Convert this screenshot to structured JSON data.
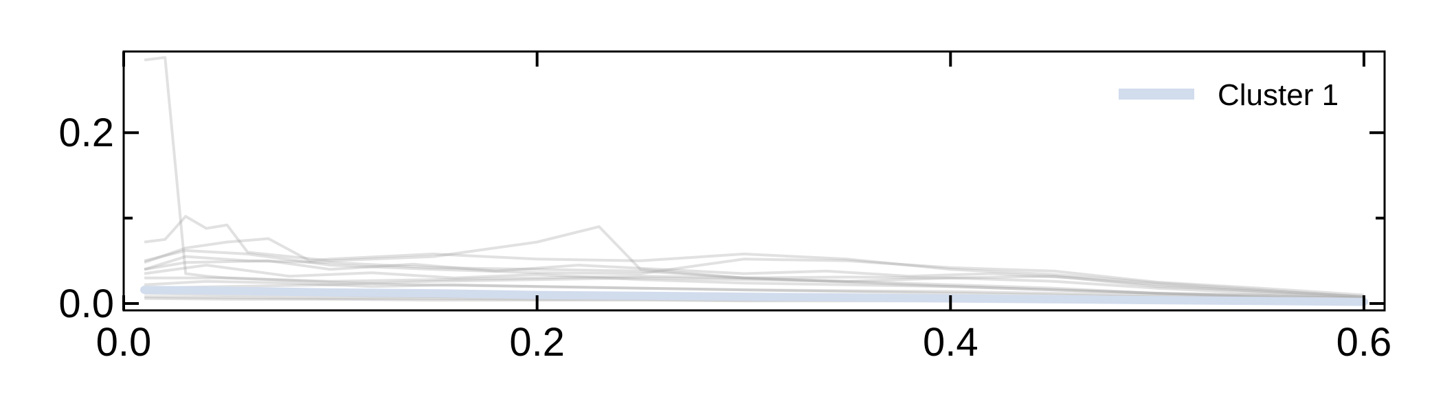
{
  "chart_data": {
    "type": "line",
    "title": "",
    "xlabel": "",
    "ylabel": "",
    "xlim": [
      0.0,
      0.61
    ],
    "ylim": [
      -0.008,
      0.295
    ],
    "x_ticks": [
      {
        "value": 0.0,
        "label": "0.0"
      },
      {
        "value": 0.2,
        "label": "0.2"
      },
      {
        "value": 0.4,
        "label": "0.4"
      },
      {
        "value": 0.6,
        "label": "0.6"
      }
    ],
    "y_ticks": [
      {
        "value": 0.0,
        "label": "0.0"
      },
      {
        "value": 0.2,
        "label": "0.2"
      }
    ],
    "y_minor_ticks": [
      0.1
    ],
    "grid": false,
    "legend": {
      "placement": "top-right"
    },
    "colors": {
      "background_series": "#9a9a9a",
      "cluster": "#d1dced",
      "axis": "#000000"
    },
    "background_series": [
      {
        "x": [
          0.01,
          0.02,
          0.03,
          0.04,
          0.05,
          0.07,
          0.1,
          0.14,
          0.2,
          0.3,
          0.4,
          0.5,
          0.6
        ],
        "y": [
          0.285,
          0.288,
          0.035,
          0.032,
          0.03,
          0.028,
          0.025,
          0.022,
          0.02,
          0.016,
          0.012,
          0.008,
          0.005
        ]
      },
      {
        "x": [
          0.01,
          0.02,
          0.03,
          0.04,
          0.05,
          0.06,
          0.08,
          0.1,
          0.15,
          0.2,
          0.23,
          0.25,
          0.3,
          0.4,
          0.5,
          0.6
        ],
        "y": [
          0.072,
          0.075,
          0.102,
          0.088,
          0.092,
          0.06,
          0.055,
          0.05,
          0.055,
          0.072,
          0.09,
          0.04,
          0.03,
          0.02,
          0.012,
          0.006
        ]
      },
      {
        "x": [
          0.01,
          0.03,
          0.05,
          0.07,
          0.09,
          0.1,
          0.15,
          0.2,
          0.25,
          0.3,
          0.35,
          0.4,
          0.45,
          0.5,
          0.55,
          0.6
        ],
        "y": [
          0.048,
          0.065,
          0.072,
          0.076,
          0.05,
          0.052,
          0.058,
          0.052,
          0.05,
          0.058,
          0.052,
          0.04,
          0.034,
          0.024,
          0.016,
          0.008
        ]
      },
      {
        "x": [
          0.01,
          0.03,
          0.06,
          0.1,
          0.15,
          0.2,
          0.25,
          0.3,
          0.35,
          0.4,
          0.45,
          0.5,
          0.55,
          0.6
        ],
        "y": [
          0.05,
          0.062,
          0.058,
          0.045,
          0.04,
          0.036,
          0.035,
          0.052,
          0.05,
          0.042,
          0.038,
          0.025,
          0.018,
          0.01
        ]
      },
      {
        "x": [
          0.01,
          0.03,
          0.06,
          0.1,
          0.15,
          0.2,
          0.25,
          0.3,
          0.35,
          0.4,
          0.45,
          0.5,
          0.55,
          0.6
        ],
        "y": [
          0.04,
          0.055,
          0.05,
          0.048,
          0.042,
          0.04,
          0.038,
          0.03,
          0.026,
          0.03,
          0.032,
          0.02,
          0.015,
          0.008
        ]
      },
      {
        "x": [
          0.01,
          0.05,
          0.1,
          0.15,
          0.2,
          0.25,
          0.3,
          0.35,
          0.4,
          0.45,
          0.5,
          0.55,
          0.6
        ],
        "y": [
          0.03,
          0.03,
          0.026,
          0.028,
          0.03,
          0.032,
          0.03,
          0.031,
          0.03,
          0.026,
          0.018,
          0.012,
          0.006
        ]
      },
      {
        "x": [
          0.01,
          0.04,
          0.08,
          0.12,
          0.16,
          0.2,
          0.25,
          0.3,
          0.35,
          0.4,
          0.45,
          0.5,
          0.55,
          0.6
        ],
        "y": [
          0.035,
          0.045,
          0.032,
          0.036,
          0.03,
          0.034,
          0.028,
          0.024,
          0.022,
          0.02,
          0.016,
          0.012,
          0.01,
          0.005
        ]
      },
      {
        "x": [
          0.01,
          0.04,
          0.08,
          0.12,
          0.16,
          0.2,
          0.25,
          0.3,
          0.35,
          0.4,
          0.45,
          0.5,
          0.55,
          0.6
        ],
        "y": [
          0.022,
          0.026,
          0.024,
          0.02,
          0.022,
          0.02,
          0.018,
          0.016,
          0.015,
          0.014,
          0.012,
          0.01,
          0.007,
          0.004
        ]
      },
      {
        "x": [
          0.01,
          0.05,
          0.1,
          0.15,
          0.2,
          0.25,
          0.3,
          0.35,
          0.4,
          0.45,
          0.5,
          0.55,
          0.6
        ],
        "y": [
          0.012,
          0.01,
          0.009,
          0.008,
          0.007,
          0.006,
          0.005,
          0.005,
          0.004,
          0.004,
          0.003,
          0.002,
          0.001
        ]
      },
      {
        "x": [
          0.01,
          0.05,
          0.1,
          0.15,
          0.2,
          0.25,
          0.3,
          0.35,
          0.4,
          0.45,
          0.5,
          0.55,
          0.6
        ],
        "y": [
          0.006,
          0.005,
          0.005,
          0.004,
          0.004,
          0.004,
          0.003,
          0.003,
          0.003,
          0.002,
          0.002,
          0.002,
          0.001
        ]
      },
      {
        "x": [
          0.01,
          0.05,
          0.1,
          0.15,
          0.2,
          0.25,
          0.3,
          0.35,
          0.4,
          0.45,
          0.5,
          0.55,
          0.6
        ],
        "y": [
          0.008,
          0.007,
          0.006,
          0.006,
          0.005,
          0.005,
          0.004,
          0.004,
          0.003,
          0.003,
          0.002,
          0.002,
          0.001
        ]
      },
      {
        "x": [
          0.01,
          0.03,
          0.07,
          0.1,
          0.14,
          0.18,
          0.22,
          0.26,
          0.3,
          0.34,
          0.38,
          0.42,
          0.46,
          0.5,
          0.55,
          0.6
        ],
        "y": [
          0.04,
          0.048,
          0.05,
          0.04,
          0.046,
          0.038,
          0.045,
          0.04,
          0.035,
          0.038,
          0.032,
          0.035,
          0.03,
          0.022,
          0.014,
          0.007
        ]
      },
      {
        "x": [
          0.01,
          0.05,
          0.1,
          0.15,
          0.2,
          0.25,
          0.3,
          0.35,
          0.4,
          0.45,
          0.5,
          0.55,
          0.6
        ],
        "y": [
          0.018,
          0.02,
          0.022,
          0.026,
          0.028,
          0.03,
          0.028,
          0.026,
          0.022,
          0.018,
          0.012,
          0.008,
          0.004
        ]
      }
    ],
    "series": [
      {
        "name": "Cluster 1",
        "x": [
          0.01,
          0.05,
          0.1,
          0.15,
          0.2,
          0.25,
          0.3,
          0.35,
          0.4,
          0.45,
          0.5,
          0.55,
          0.6
        ],
        "y": [
          0.016,
          0.015,
          0.013,
          0.012,
          0.01,
          0.009,
          0.008,
          0.007,
          0.006,
          0.005,
          0.004,
          0.003,
          0.002
        ]
      }
    ]
  }
}
